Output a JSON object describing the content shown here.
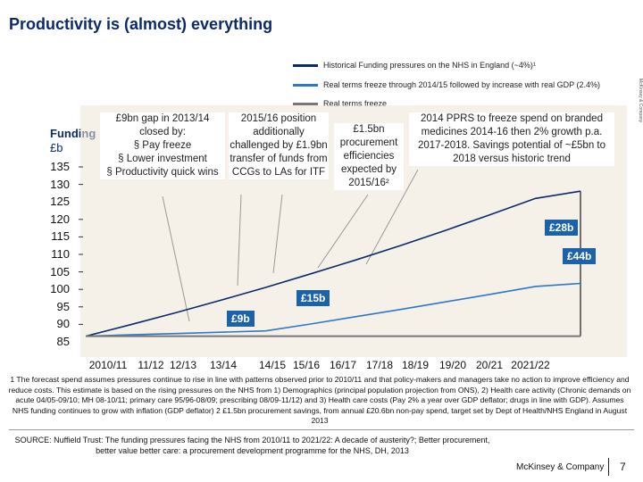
{
  "title": "Productivity is (almost) everything",
  "legend": [
    {
      "label": "Historical Funding pressures on the NHS in England (~4%)¹",
      "color": "#0b2a6b"
    },
    {
      "label": "Real terms freeze through 2014/15 followed by increase with real GDP (2.4%)",
      "color": "#2e78c8"
    },
    {
      "label": "Real terms freeze",
      "color": "#777777"
    }
  ],
  "side_note": "McKinsey & Company",
  "y_axis": {
    "title": "Funding",
    "unit": "£b"
  },
  "chart_data": {
    "type": "line",
    "x": [
      "2010/11",
      "11/12",
      "12/13",
      "13/14",
      "14/15",
      "15/16",
      "16/17",
      "17/18",
      "18/19",
      "19/20",
      "20/21",
      "2021/22"
    ],
    "ylim": [
      85,
      137
    ],
    "yticks": [
      85,
      90,
      95,
      100,
      105,
      110,
      115,
      120,
      125,
      130,
      135
    ],
    "series": [
      {
        "name": "Historical Funding pressures on the NHS in England (~4%)¹",
        "color": "#0b2a6b",
        "values": [
          87.0,
          90.5,
          94.1,
          97.9,
          101.8,
          105.9,
          110.1,
          114.5,
          119.1,
          123.9,
          128.8,
          131.0
        ]
      },
      {
        "name": "Real terms freeze through 2014/15 followed by increase with real GDP (2.4%)",
        "color": "#2e78c8",
        "values": [
          87.0,
          87.4,
          87.8,
          88.2,
          88.6,
          90.7,
          92.9,
          95.1,
          97.4,
          99.7,
          102.1,
          103.0
        ]
      },
      {
        "name": "Real terms freeze",
        "color": "#777777",
        "values": [
          87.0,
          87.0,
          87.0,
          87.0,
          87.0,
          87.0,
          87.0,
          87.0,
          87.0,
          87.0,
          87.0,
          87.0
        ]
      }
    ],
    "grid": false
  },
  "annotations": {
    "gap": {
      "title": "£9bn gap in 2013/14 closed by:",
      "bullets": [
        "§ Pay freeze",
        "§ Lower investment",
        "§ Productivity quick wins"
      ]
    },
    "position": "2015/16 position additionally challenged by £1.9bn transfer of funds from CCGs to LAs for ITF",
    "procurement": "£1.5bn procurement efficiencies expected by 2015/16²",
    "pprs": "2014 PPRS to freeze spend on branded medicines 2014-16 then 2% growth p.a. 2017-2018. Savings potential of ~£5bn to 2018 versus historic trend"
  },
  "callouts": {
    "c28": "£28b",
    "c44": "£44b",
    "c15": "£15b",
    "c9": "£9b"
  },
  "footnote": "1 The forecast spend assumes pressures continue to rise in line with patterns observed prior to 2010/11 and that policy-makers and managers take no action to improve efficiency and reduce costs. This estimate is based on the rising pressures on the NHS from 1) Demographics (principal population projection from ONS), 2) Health care activity (Chronic demands on acute 04/05-09/10; MH 08-10/11; primary care 95/96-08/09; prescribing 08/09-11/12) and 3) Health care costs (Pay 2% a year over GDP deflator; drugs in line with GDP). Assumes NHS funding continues to grow with inflation (GDP deflator) 2 £1.5bn procurement savings, from annual £20.6bn non-pay spend, target set by Dept of Health/NHS England in August 2013",
  "source": "SOURCE: Nuffield Trust: The funding pressures facing the NHS from 2010/11 to 2021/22: A decade of austerity?; Better procurement, better value better care: a procurement development programme for the NHS, DH, 2013",
  "brand": "McKinsey & Company",
  "page_number": "7"
}
